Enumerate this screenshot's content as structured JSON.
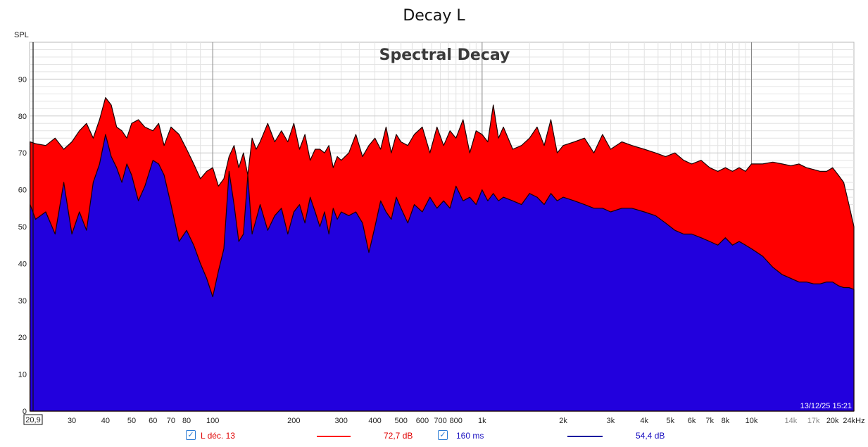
{
  "window_title": "Decay L",
  "chart_data": {
    "type": "area",
    "title": "Spectral Decay",
    "ylabel": "SPL",
    "xlabel": "",
    "x_scale": "log",
    "xlim": [
      20.9,
      24000
    ],
    "ylim": [
      0,
      100
    ],
    "grid": true,
    "timestamp": "13/12/25 15:21",
    "x_start_label": "20,9",
    "x_ticks": [
      {
        "v": 30,
        "label": "30",
        "muted": false
      },
      {
        "v": 40,
        "label": "40",
        "muted": false
      },
      {
        "v": 50,
        "label": "50",
        "muted": false
      },
      {
        "v": 60,
        "label": "60",
        "muted": false
      },
      {
        "v": 70,
        "label": "70",
        "muted": false
      },
      {
        "v": 80,
        "label": "80",
        "muted": false
      },
      {
        "v": 100,
        "label": "100",
        "muted": false
      },
      {
        "v": 200,
        "label": "200",
        "muted": false
      },
      {
        "v": 300,
        "label": "300",
        "muted": false
      },
      {
        "v": 400,
        "label": "400",
        "muted": false
      },
      {
        "v": 500,
        "label": "500",
        "muted": false
      },
      {
        "v": 600,
        "label": "600",
        "muted": false
      },
      {
        "v": 700,
        "label": "700",
        "muted": false
      },
      {
        "v": 800,
        "label": "800",
        "muted": false
      },
      {
        "v": 1000,
        "label": "1k",
        "muted": false
      },
      {
        "v": 2000,
        "label": "2k",
        "muted": false
      },
      {
        "v": 3000,
        "label": "3k",
        "muted": false
      },
      {
        "v": 4000,
        "label": "4k",
        "muted": false
      },
      {
        "v": 5000,
        "label": "5k",
        "muted": false
      },
      {
        "v": 6000,
        "label": "6k",
        "muted": false
      },
      {
        "v": 7000,
        "label": "7k",
        "muted": false
      },
      {
        "v": 8000,
        "label": "8k",
        "muted": false
      },
      {
        "v": 10000,
        "label": "10k",
        "muted": false
      },
      {
        "v": 14000,
        "label": "14k",
        "muted": true
      },
      {
        "v": 17000,
        "label": "17k",
        "muted": true
      },
      {
        "v": 20000,
        "label": "20k",
        "muted": false
      },
      {
        "v": 24000,
        "label": "24kHz",
        "muted": false
      }
    ],
    "y_ticks": [
      0,
      10,
      20,
      30,
      40,
      50,
      60,
      70,
      80,
      90
    ],
    "series": [
      {
        "name": "L déc. 13",
        "color": "#ff0000",
        "x": [
          21,
          22,
          24,
          26,
          28,
          30,
          32,
          34,
          36,
          38,
          40,
          42,
          44,
          46,
          48,
          50,
          53,
          56,
          60,
          63,
          66,
          70,
          75,
          80,
          85,
          90,
          95,
          100,
          105,
          110,
          115,
          120,
          125,
          130,
          135,
          140,
          145,
          150,
          160,
          170,
          180,
          190,
          200,
          210,
          220,
          230,
          240,
          250,
          260,
          270,
          280,
          290,
          300,
          320,
          340,
          360,
          380,
          400,
          420,
          440,
          460,
          480,
          500,
          530,
          560,
          600,
          640,
          680,
          720,
          760,
          800,
          850,
          900,
          950,
          1000,
          1050,
          1100,
          1150,
          1200,
          1300,
          1400,
          1500,
          1600,
          1700,
          1800,
          1900,
          2000,
          2200,
          2400,
          2600,
          2800,
          3000,
          3300,
          3600,
          4000,
          4400,
          4800,
          5200,
          5600,
          6000,
          6500,
          7000,
          7500,
          8000,
          8500,
          9000,
          9500,
          10000,
          11000,
          12000,
          13000,
          14000,
          15000,
          16000,
          17000,
          18000,
          19000,
          20000,
          21000,
          22000,
          23000,
          24000
        ],
        "values": [
          73,
          72.5,
          72,
          74,
          71,
          73,
          76,
          78,
          74,
          79,
          85,
          83,
          77,
          76,
          74,
          78,
          79,
          77,
          76,
          78,
          72,
          77,
          75,
          71,
          67,
          63,
          65,
          66,
          61,
          63,
          69,
          72,
          66,
          70,
          64,
          74,
          71,
          73,
          78,
          73,
          76,
          73,
          78,
          71,
          75,
          68,
          71,
          71,
          70,
          72,
          66,
          69,
          68,
          70,
          75,
          69,
          72,
          74,
          71,
          77,
          70,
          75,
          73,
          72,
          75,
          77,
          70,
          77,
          72,
          76,
          74,
          79,
          70,
          76,
          75,
          73,
          83,
          74,
          77,
          71,
          72,
          74,
          77,
          72,
          79,
          70,
          72,
          73,
          74,
          70,
          75,
          71,
          73,
          72,
          71,
          70,
          69,
          70,
          68,
          67,
          68,
          66,
          65,
          66,
          65,
          66,
          65,
          67,
          67,
          67.5,
          67,
          66.5,
          67,
          66,
          65.5,
          65,
          65,
          66,
          64,
          62,
          56,
          50
        ]
      },
      {
        "name": "160 ms",
        "color": "#2200dd",
        "x": [
          21,
          22,
          24,
          26,
          28,
          30,
          32,
          34,
          36,
          38,
          40,
          42,
          44,
          46,
          48,
          50,
          53,
          56,
          60,
          63,
          66,
          70,
          75,
          80,
          85,
          90,
          95,
          100,
          105,
          110,
          115,
          120,
          125,
          130,
          135,
          140,
          145,
          150,
          160,
          170,
          180,
          190,
          200,
          210,
          220,
          230,
          240,
          250,
          260,
          270,
          280,
          290,
          300,
          320,
          340,
          360,
          380,
          400,
          420,
          440,
          460,
          480,
          500,
          530,
          560,
          600,
          640,
          680,
          720,
          760,
          800,
          850,
          900,
          950,
          1000,
          1050,
          1100,
          1150,
          1200,
          1300,
          1400,
          1500,
          1600,
          1700,
          1800,
          1900,
          2000,
          2200,
          2400,
          2600,
          2800,
          3000,
          3300,
          3600,
          4000,
          4400,
          4800,
          5200,
          5600,
          6000,
          6500,
          7000,
          7500,
          8000,
          8500,
          9000,
          9500,
          10000,
          11000,
          12000,
          13000,
          14000,
          15000,
          16000,
          17000,
          18000,
          19000,
          20000,
          21000,
          22000,
          23000,
          24000
        ],
        "values": [
          56,
          52,
          54,
          48,
          62,
          48,
          54,
          49,
          62,
          67,
          75,
          69,
          66,
          62,
          67,
          64,
          57,
          61,
          68,
          67,
          64,
          56,
          46,
          49,
          45,
          40,
          36,
          31,
          38,
          44,
          65,
          56,
          46,
          48,
          64,
          48,
          52,
          56,
          49,
          53,
          55,
          48,
          54,
          56,
          51,
          58,
          54,
          50,
          54,
          48,
          55,
          52,
          54,
          53,
          54,
          51,
          43,
          50,
          57,
          54,
          52,
          58,
          55,
          51,
          56,
          54,
          58,
          55,
          57,
          55,
          61,
          57,
          58,
          56,
          60,
          57,
          59,
          57,
          58,
          57,
          56,
          59,
          58,
          56,
          59,
          57,
          58,
          57,
          56,
          55,
          55,
          54,
          55,
          55,
          54,
          53,
          51,
          49,
          48,
          48,
          47,
          46,
          45,
          47,
          45,
          46,
          45,
          44,
          42,
          39,
          37,
          36,
          35,
          35,
          34.5,
          34.5,
          35,
          35,
          34,
          33.5,
          33.5,
          33
        ]
      }
    ]
  },
  "legend": {
    "item1_label": "L déc. 13",
    "item1_value": "72,7 dB",
    "item1_color": "#ff0000",
    "item2_label": "160 ms",
    "item2_value": "54,4 dB",
    "item2_color": "#2200dd",
    "check": "✓"
  }
}
